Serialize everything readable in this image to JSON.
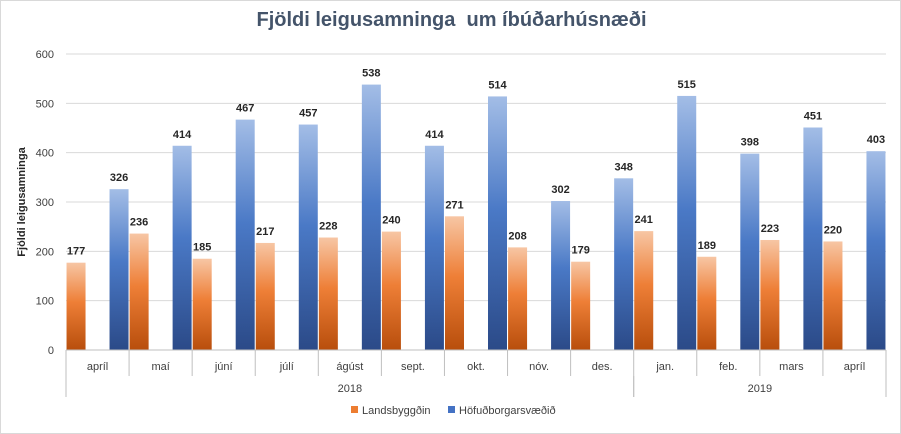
{
  "chart_data": {
    "type": "bar",
    "title": "Fjöldi leigusamninga  um íbúðarhúsnæði",
    "ylabel": "Fjöldi leigusamninga",
    "xlabel": "",
    "ylim": [
      0,
      600
    ],
    "yticks": [
      0,
      100,
      200,
      300,
      400,
      500,
      600
    ],
    "grid": true,
    "legend_position": "bottom",
    "categories": [
      "apríl",
      "maí",
      "júní",
      "júlí",
      "ágúst",
      "sept.",
      "okt.",
      "nóv.",
      "des.",
      "jan.",
      "feb.",
      "mars",
      "apríl"
    ],
    "year_groups": [
      {
        "label": "2018",
        "count": 9
      },
      {
        "label": "2019",
        "count": 4
      }
    ],
    "series": [
      {
        "name": "Landsbyggðin",
        "color": "#ed7d31",
        "values": [
          177,
          236,
          185,
          217,
          228,
          240,
          271,
          208,
          179,
          241,
          189,
          223,
          220
        ]
      },
      {
        "name": "Höfuðborgarsvæðið",
        "color": "#4472c4",
        "values": [
          326,
          414,
          467,
          457,
          538,
          414,
          514,
          302,
          348,
          515,
          398,
          451,
          403
        ]
      }
    ]
  }
}
